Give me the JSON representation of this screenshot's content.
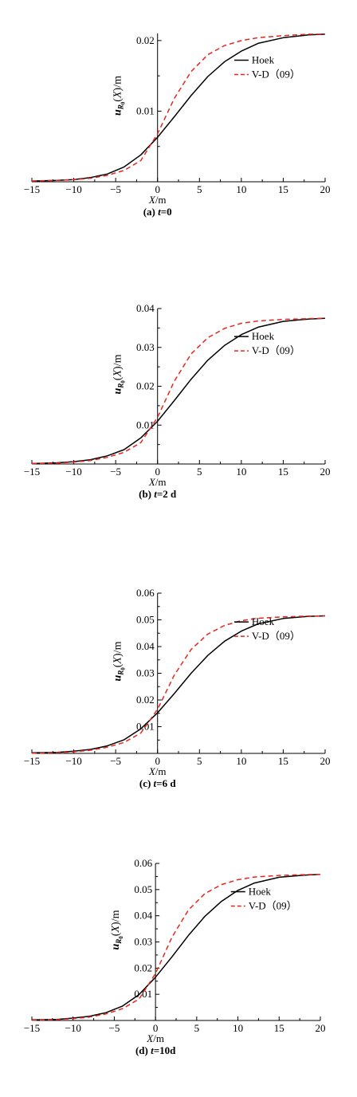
{
  "chart_data": [
    {
      "type": "line",
      "caption": "(a) t=0",
      "caption_parts": [
        "(a) ",
        "t",
        "=0"
      ],
      "xlabel_parts": [
        "X",
        "/m"
      ],
      "ylabel_parts": [
        "u",
        "R",
        "0",
        "(",
        "X",
        ")",
        "/m"
      ],
      "xlim": [
        -15,
        20
      ],
      "ylim": [
        0,
        0.021
      ],
      "xticks": [
        -15,
        -10,
        -5,
        0,
        5,
        10,
        15,
        20
      ],
      "xtick_labels": [
        "−15",
        "−10",
        "−5",
        "0",
        "5",
        "10",
        "15",
        "20"
      ],
      "yticks": [
        0.01,
        0.02
      ],
      "ytick_labels": [
        "0.01",
        "0.02"
      ],
      "grid": false,
      "legend_position": "right",
      "series": [
        {
          "name": "Hoek",
          "color": "#000000",
          "dash": "solid",
          "x": [
            -15,
            -12,
            -10,
            -8,
            -6,
            -4,
            -2,
            0,
            2,
            4,
            6,
            8,
            10,
            12,
            15,
            18,
            20
          ],
          "y": [
            0.0001,
            0.0002,
            0.0003,
            0.0006,
            0.0011,
            0.0021,
            0.0038,
            0.0063,
            0.0092,
            0.0122,
            0.0149,
            0.017,
            0.0185,
            0.0196,
            0.0204,
            0.0208,
            0.0209
          ]
        },
        {
          "name": "V-D（09）",
          "color": "#e8251e",
          "dash": "6,4",
          "x": [
            -15,
            -12,
            -10,
            -8,
            -6,
            -4,
            -2,
            0,
            2,
            4,
            6,
            8,
            10,
            12,
            15,
            18,
            20
          ],
          "y": [
            0.0001,
            0.0002,
            0.0003,
            0.0005,
            0.0009,
            0.0016,
            0.003,
            0.0068,
            0.0118,
            0.0156,
            0.018,
            0.0193,
            0.02,
            0.0204,
            0.0207,
            0.0209,
            0.0209
          ]
        }
      ]
    },
    {
      "type": "line",
      "caption": "(b) t=2 d",
      "caption_parts": [
        "(b) ",
        "t",
        "=2 d"
      ],
      "xlabel_parts": [
        "X",
        "/m"
      ],
      "ylabel_parts": [
        "u",
        "R",
        "0",
        "(",
        "X",
        ")",
        "/m"
      ],
      "xlim": [
        -15,
        20
      ],
      "ylim": [
        0,
        0.04
      ],
      "xticks": [
        -15,
        -10,
        -5,
        0,
        5,
        10,
        15,
        20
      ],
      "xtick_labels": [
        "−15",
        "−10",
        "−5",
        "0",
        "5",
        "10",
        "15",
        "20"
      ],
      "yticks": [
        0.01,
        0.02,
        0.03,
        0.04
      ],
      "ytick_labels": [
        "0.01",
        "0.02",
        "0.03",
        "0.04"
      ],
      "grid": false,
      "legend_position": "right",
      "series": [
        {
          "name": "Hoek",
          "color": "#000000",
          "dash": "solid",
          "x": [
            -15,
            -12,
            -10,
            -8,
            -6,
            -4,
            -2,
            0,
            2,
            4,
            6,
            8,
            10,
            12,
            15,
            18,
            20
          ],
          "y": [
            0.0001,
            0.0003,
            0.0006,
            0.0011,
            0.0021,
            0.0037,
            0.0067,
            0.011,
            0.0163,
            0.0218,
            0.0267,
            0.0305,
            0.0333,
            0.0352,
            0.0367,
            0.0373,
            0.0375
          ]
        },
        {
          "name": "V-D（09）",
          "color": "#e8251e",
          "dash": "6,4",
          "x": [
            -15,
            -12,
            -10,
            -8,
            -6,
            -4,
            -2,
            0,
            2,
            4,
            6,
            8,
            10,
            12,
            15,
            18,
            20
          ],
          "y": [
            0.0001,
            0.0002,
            0.0005,
            0.0009,
            0.0017,
            0.003,
            0.0055,
            0.012,
            0.0213,
            0.0283,
            0.0325,
            0.0349,
            0.0362,
            0.0368,
            0.0372,
            0.0374,
            0.0375
          ]
        }
      ]
    },
    {
      "type": "line",
      "caption": "(c) t=6 d",
      "caption_parts": [
        "(c) ",
        "t",
        "=6 d"
      ],
      "xlabel_parts": [
        "X",
        "/m"
      ],
      "ylabel_parts": [
        "u",
        "R",
        "0",
        "(",
        "X",
        ")",
        "/m"
      ],
      "xlim": [
        -15,
        20
      ],
      "ylim": [
        0,
        0.06
      ],
      "xticks": [
        -15,
        -10,
        -5,
        0,
        5,
        10,
        15,
        20
      ],
      "xtick_labels": [
        "−15",
        "−10",
        "−5",
        "0",
        "5",
        "10",
        "15",
        "20"
      ],
      "yticks": [
        0.01,
        0.02,
        0.03,
        0.04,
        0.05,
        0.06
      ],
      "ytick_labels": [
        "0.01",
        "0.02",
        "0.03",
        "0.04",
        "0.05",
        "0.06"
      ],
      "grid": false,
      "legend_position": "right",
      "series": [
        {
          "name": "Hoek",
          "color": "#000000",
          "dash": "solid",
          "x": [
            -15,
            -12,
            -10,
            -8,
            -6,
            -4,
            -2,
            0,
            2,
            4,
            6,
            8,
            10,
            12,
            15,
            18,
            20
          ],
          "y": [
            0.0002,
            0.0004,
            0.0008,
            0.0015,
            0.0028,
            0.0051,
            0.0092,
            0.0152,
            0.0224,
            0.03,
            0.0367,
            0.042,
            0.0458,
            0.0485,
            0.0505,
            0.0513,
            0.0515
          ]
        },
        {
          "name": "V-D（09）",
          "color": "#e8251e",
          "dash": "6,4",
          "x": [
            -15,
            -12,
            -10,
            -8,
            -6,
            -4,
            -2,
            0,
            2,
            4,
            6,
            8,
            10,
            12,
            15,
            18,
            20
          ],
          "y": [
            0.0001,
            0.0003,
            0.0006,
            0.0012,
            0.0023,
            0.0041,
            0.0076,
            0.0165,
            0.0293,
            0.0389,
            0.0447,
            0.0479,
            0.0497,
            0.0506,
            0.0511,
            0.0514,
            0.0515
          ]
        }
      ]
    },
    {
      "type": "line",
      "caption": "(d) t=10d",
      "caption_parts": [
        "(d) ",
        "t",
        "=10d"
      ],
      "xlabel_parts": [
        "X",
        "/m"
      ],
      "ylabel_parts": [
        "u",
        "R",
        "0",
        "(",
        "X",
        ")",
        "/m"
      ],
      "xlim": [
        -15,
        20
      ],
      "ylim": [
        0,
        0.06
      ],
      "xticks": [
        -15,
        -10,
        -5,
        0,
        5,
        10,
        15,
        20
      ],
      "xtick_labels": [
        "−15",
        "−10",
        "−5",
        "0",
        "5",
        "10",
        "15",
        "20"
      ],
      "yticks": [
        0.01,
        0.02,
        0.03,
        0.04,
        0.05,
        0.06
      ],
      "ytick_labels": [
        "0.01",
        "0.02",
        "0.03",
        "0.04",
        "0.05",
        "0.06"
      ],
      "grid": false,
      "legend_position": "right",
      "series": [
        {
          "name": "Hoek",
          "color": "#000000",
          "dash": "solid",
          "x": [
            -15,
            -12,
            -10,
            -8,
            -6,
            -4,
            -2,
            0,
            2,
            4,
            6,
            8,
            10,
            12,
            15,
            18,
            20
          ],
          "y": [
            0.0002,
            0.0004,
            0.0009,
            0.0016,
            0.003,
            0.0055,
            0.0099,
            0.0165,
            0.0243,
            0.0325,
            0.0398,
            0.0455,
            0.0497,
            0.0525,
            0.0547,
            0.0555,
            0.0558
          ]
        },
        {
          "name": "V-D（09）",
          "color": "#e8251e",
          "dash": "6,4",
          "x": [
            -15,
            -12,
            -10,
            -8,
            -6,
            -4,
            -2,
            0,
            2,
            4,
            6,
            8,
            10,
            12,
            15,
            18,
            20
          ],
          "y": [
            0.0001,
            0.0003,
            0.0007,
            0.0013,
            0.0025,
            0.0045,
            0.0082,
            0.0179,
            0.0318,
            0.0422,
            0.0485,
            0.0519,
            0.0538,
            0.0548,
            0.0554,
            0.0557,
            0.0558
          ]
        }
      ]
    }
  ]
}
